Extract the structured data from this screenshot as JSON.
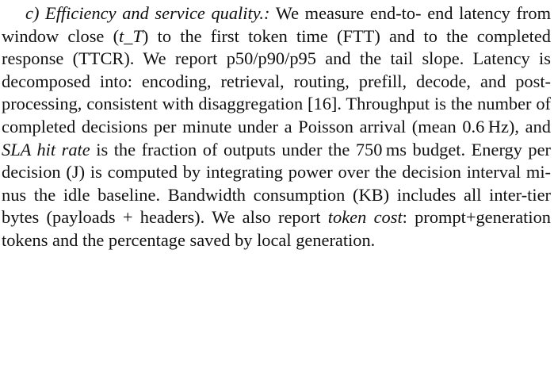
{
  "section": {
    "heading": "c) Efficiency and service quality.:",
    "lines": [
      " We measure end-to-",
      "end latency from window close (",
      "t_T",
      ") to the first token",
      "time (FTT) and to the completed response (TTCR). We",
      "report p50/p90/p95 and the tail slope. Latency is decomposed",
      "into: encoding, retrieval, routing, prefill, decode, and post-",
      "processing, consistent with disaggregation [16]. Throughput",
      "is the number of completed decisions per minute under a",
      "Poisson arrival (mean 0.6 Hz), and ",
      "SLA hit rate",
      " is the fraction",
      "of outputs under the 750 ms budget. Energy per decision (J) is",
      "computed by integrating power over the decision interval mi-",
      "nus the idle baseline. Bandwidth consumption (KB) includes",
      "all inter-tier bytes (payloads + headers). We also report ",
      "token",
      "cost",
      ": prompt+generation tokens and the percentage saved by",
      "local generation."
    ]
  }
}
